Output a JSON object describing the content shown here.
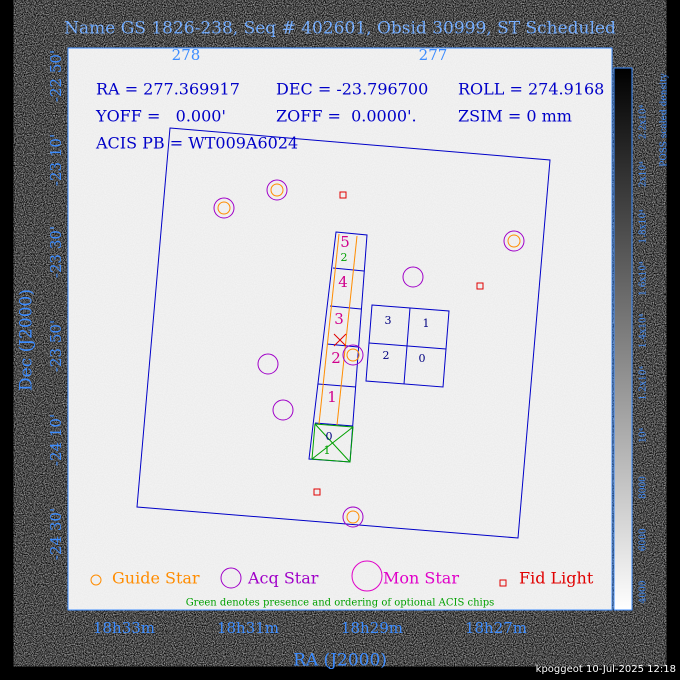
{
  "title": "Name GS 1826-238, Seq # 402601, Obsid 30999, ST Scheduled",
  "info": {
    "ra": "RA = 277.369917",
    "dec": "DEC = -23.796700",
    "roll": "ROLL = 274.9168",
    "yoff": "YOFF =   0.000'",
    "zoff": "ZOFF =  0.0000'.",
    "zsim": "ZSIM = 0 mm",
    "acis": "ACIS PB = WT009A6024"
  },
  "top_axis": [
    "278",
    "277"
  ],
  "left_axis": [
    "-22 50'",
    "-23 10'",
    "-23 30'",
    "-23 50'",
    "-24 10'",
    "-24 30'"
  ],
  "bottom_axis": [
    "18h33m",
    "18h31m",
    "18h29m",
    "18h27m"
  ],
  "x_label": "RA (J2000)",
  "y_label": "Dec (J2000)",
  "colorbar": {
    "title": "POSS scaled density",
    "labels": [
      "4000",
      "6000",
      "8000",
      "10⁴",
      "1.2x10⁴",
      "1.4x10⁴",
      "1.6x10⁴",
      "1.8x10⁴",
      "2x10⁴",
      "2.2x10⁴"
    ]
  },
  "acis_s": [
    "5",
    "4",
    "3",
    "2",
    "1",
    "0"
  ],
  "acis_s_optional": [
    "2",
    "1"
  ],
  "acis_i": [
    "3",
    "1",
    "2",
    "0"
  ],
  "legend": [
    "Guide Star",
    "Acq Star",
    "Mon Star",
    "Fid Light"
  ],
  "note": "Green denotes presence and ordering of optional ACIS chips",
  "footer": "kpoggeot 10-Jul-2025 12:18"
}
